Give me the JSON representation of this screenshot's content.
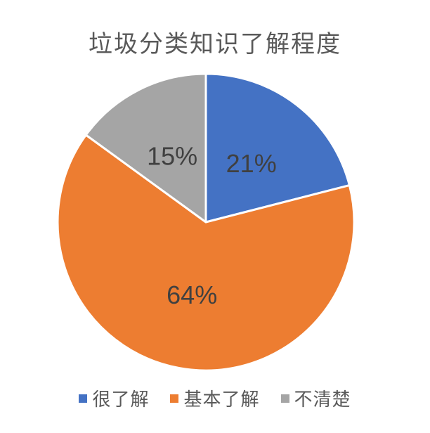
{
  "chart_data": {
    "type": "pie",
    "title": "垃圾分类知识了解程度",
    "slices": [
      {
        "label": "很了解",
        "value": 21,
        "display": "21%",
        "color": "#4472C4"
      },
      {
        "label": "基本了解",
        "value": 64,
        "display": "64%",
        "color": "#ED7D31"
      },
      {
        "label": "不清楚",
        "value": 15,
        "display": "15%",
        "color": "#A5A5A5"
      }
    ],
    "start_angle": "top",
    "direction": "clockwise",
    "legend_position": "bottom",
    "colors": {
      "title_text": "#595959",
      "legend_text": "#595959",
      "slice_label_text": "#404040",
      "separator": "#FFFFFF",
      "background": "#FFFFFF"
    }
  }
}
